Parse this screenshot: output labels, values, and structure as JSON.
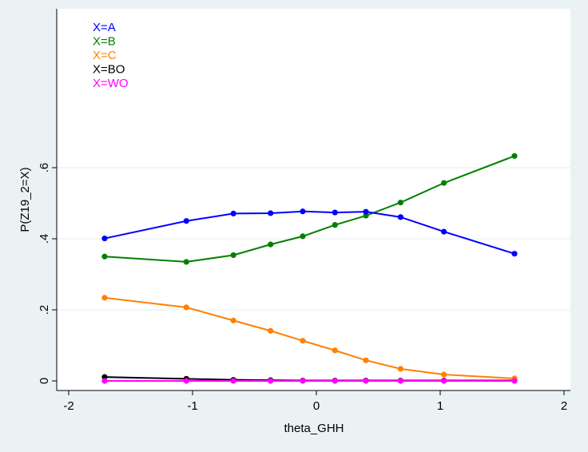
{
  "chart_data": {
    "type": "line",
    "xlabel": "theta_GHH",
    "ylabel": "P(Z19_2=X)",
    "xlim": [
      -2,
      2
    ],
    "ylim": [
      0,
      0.6
    ],
    "grid": "horizontal",
    "legend_placement": "top-left",
    "x_ticks": [
      -2,
      -1,
      0,
      1,
      2
    ],
    "x_tick_labels": [
      "-2",
      "-1",
      "0",
      "1",
      "2"
    ],
    "y_ticks": [
      0,
      0.2,
      0.4,
      0.6
    ],
    "y_tick_labels": [
      "0",
      ".2",
      ".4",
      ".6"
    ],
    "x": [
      -1.71,
      -1.05,
      -0.67,
      -0.37,
      -0.11,
      0.15,
      0.4,
      0.68,
      1.03,
      1.6
    ],
    "series": [
      {
        "name": "X=A",
        "color": "#0000ff",
        "values": [
          0.401,
          0.45,
          0.471,
          0.472,
          0.477,
          0.474,
          0.476,
          0.461,
          0.42,
          0.358
        ]
      },
      {
        "name": "X=B",
        "color": "#008000",
        "values": [
          0.35,
          0.335,
          0.354,
          0.384,
          0.407,
          0.439,
          0.465,
          0.502,
          0.557,
          0.633
        ]
      },
      {
        "name": "X=C",
        "color": "#ff8000",
        "values": [
          0.234,
          0.207,
          0.17,
          0.141,
          0.113,
          0.086,
          0.058,
          0.034,
          0.018,
          0.007
        ]
      },
      {
        "name": "X=BO",
        "color": "#000000",
        "values": [
          0.011,
          0.006,
          0.003,
          0.002,
          0.001,
          0.001,
          0.001,
          0.001,
          0.001,
          0.001
        ]
      },
      {
        "name": "X=WO",
        "color": "#ff00ff",
        "values": [
          0.0,
          0.0,
          0.0,
          0.0,
          0.0,
          0.0,
          0.0,
          0.0,
          0.0,
          0.0
        ]
      }
    ]
  }
}
